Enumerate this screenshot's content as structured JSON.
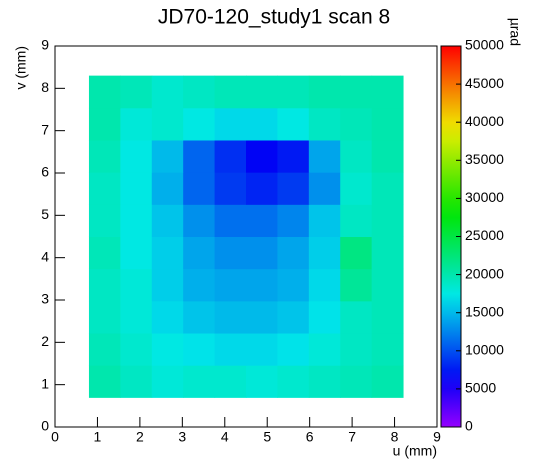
{
  "chart_data": {
    "type": "heatmap",
    "title": "JD70-120_study1 scan 8",
    "x_label": "u (mm)",
    "y_label": "v (mm)",
    "z_label": "µrad",
    "xlim": [
      0,
      9
    ],
    "ylim": [
      0,
      9
    ],
    "zlim": [
      0,
      50000
    ],
    "xticks": [
      0,
      1,
      2,
      3,
      4,
      5,
      6,
      7,
      8,
      9
    ],
    "yticks": [
      0,
      1,
      2,
      3,
      4,
      5,
      6,
      7,
      8,
      9
    ],
    "zticks": [
      0,
      5000,
      10000,
      15000,
      20000,
      25000,
      30000,
      35000,
      40000,
      45000,
      50000
    ],
    "xbins": [
      0.8,
      1.54,
      2.28,
      3.02,
      3.76,
      4.5,
      5.24,
      5.98,
      6.72,
      7.46,
      8.2
    ],
    "ybins": [
      0.7,
      1.46,
      2.22,
      2.98,
      3.74,
      4.5,
      5.26,
      6.02,
      6.78,
      7.54,
      8.3
    ],
    "z": [
      [
        20000,
        19000,
        18000,
        18500,
        18500,
        18000,
        18500,
        19000,
        19500,
        20000
      ],
      [
        19500,
        18500,
        17500,
        17000,
        16500,
        16500,
        17000,
        18000,
        19000,
        19500
      ],
      [
        19000,
        18000,
        16500,
        15500,
        15000,
        15000,
        15500,
        17000,
        19000,
        19500
      ],
      [
        19000,
        18000,
        16000,
        14500,
        14000,
        14000,
        14500,
        16500,
        21000,
        19500
      ],
      [
        19500,
        17500,
        16000,
        14000,
        13000,
        13000,
        14000,
        16000,
        22000,
        19500
      ],
      [
        19000,
        17500,
        15500,
        13000,
        11500,
        11500,
        12500,
        15500,
        19000,
        19500
      ],
      [
        19000,
        17500,
        14500,
        11000,
        9000,
        8000,
        9000,
        13000,
        18500,
        19500
      ],
      [
        19500,
        17500,
        15000,
        11000,
        8500,
        6500,
        7500,
        14000,
        19000,
        20000
      ],
      [
        20000,
        18000,
        18500,
        17500,
        16500,
        16500,
        17500,
        19000,
        19500,
        20000
      ],
      [
        20000,
        19500,
        18500,
        19000,
        19500,
        19500,
        19500,
        20000,
        20000,
        20000
      ]
    ]
  }
}
